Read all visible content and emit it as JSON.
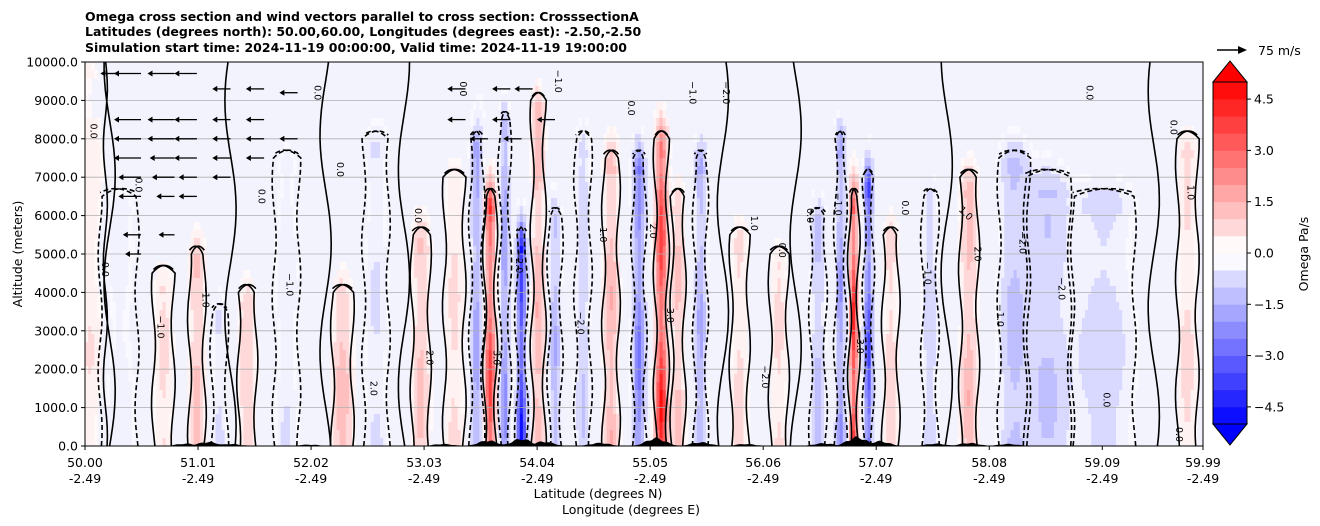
{
  "chart_data": {
    "type": "heatmap",
    "title_lines": [
      "Omega cross section and wind vectors parallel to cross section: CrosssectionA",
      "Latitudes (degrees north): 50.00,60.00, Longitudes (degrees east): -2.50,-2.50",
      "Simulation start time: 2024-11-19 00:00:00, Valid time: 2024-11-19 19:00:00"
    ],
    "ylabel": "Altitude (meters)",
    "xlabel_lines": [
      "Latitude (degrees N)",
      "Longitude (degrees E)"
    ],
    "ylim": [
      0,
      10000
    ],
    "xlim": [
      50.0,
      59.99
    ],
    "y_ticks": [
      {
        "value": 0,
        "label": "0.0"
      },
      {
        "value": 1000,
        "label": "1000.0"
      },
      {
        "value": 2000,
        "label": "2000.0"
      },
      {
        "value": 3000,
        "label": "3000.0"
      },
      {
        "value": 4000,
        "label": "4000.0"
      },
      {
        "value": 5000,
        "label": "5000.0"
      },
      {
        "value": 6000,
        "label": "6000.0"
      },
      {
        "value": 7000,
        "label": "7000.0"
      },
      {
        "value": 8000,
        "label": "8000.0"
      },
      {
        "value": 9000,
        "label": "9000.0"
      },
      {
        "value": 10000,
        "label": "10000.0"
      }
    ],
    "x_ticks": [
      {
        "lat": 50.0,
        "lat_label": "50.00",
        "lon_label": "-2.49"
      },
      {
        "lat": 51.01,
        "lat_label": "51.01",
        "lon_label": "-2.49"
      },
      {
        "lat": 52.02,
        "lat_label": "52.02",
        "lon_label": "-2.49"
      },
      {
        "lat": 53.03,
        "lat_label": "53.03",
        "lon_label": "-2.49"
      },
      {
        "lat": 54.04,
        "lat_label": "54.04",
        "lon_label": "-2.49"
      },
      {
        "lat": 55.05,
        "lat_label": "55.05",
        "lon_label": "-2.49"
      },
      {
        "lat": 56.06,
        "lat_label": "56.06",
        "lon_label": "-2.49"
      },
      {
        "lat": 57.07,
        "lat_label": "57.07",
        "lon_label": "-2.49"
      },
      {
        "lat": 58.08,
        "lat_label": "58.08",
        "lon_label": "-2.49"
      },
      {
        "lat": 59.09,
        "lat_label": "59.09",
        "lon_label": "-2.49"
      },
      {
        "lat": 59.99,
        "lat_label": "59.99",
        "lon_label": "-2.49"
      }
    ],
    "colorbar": {
      "label": "Omega Pa/s",
      "min": -5.0,
      "max": 5.0,
      "ticks": [
        {
          "value": 4.5,
          "label": "4.5"
        },
        {
          "value": 3.0,
          "label": "3.0"
        },
        {
          "value": 1.5,
          "label": "1.5"
        },
        {
          "value": 0.0,
          "label": "0.0"
        },
        {
          "value": -1.5,
          "label": "−1.5"
        },
        {
          "value": -3.0,
          "label": "−3.0"
        },
        {
          "value": -4.5,
          "label": "−4.5"
        }
      ],
      "extend": "both"
    },
    "quiver_key": {
      "label": "75 m/s",
      "speed": 75
    },
    "omega_features": [
      {
        "lat": 50.05,
        "alt_top": 9500,
        "amp": 0.6,
        "width": 0.12
      },
      {
        "lat": 50.3,
        "alt_top": 6000,
        "amp": -0.5,
        "width": 0.15
      },
      {
        "lat": 50.7,
        "alt_top": 4000,
        "amp": 0.8,
        "width": 0.08
      },
      {
        "lat": 51.0,
        "alt_top": 4500,
        "amp": 1.6,
        "width": 0.06
      },
      {
        "lat": 51.2,
        "alt_top": 3000,
        "amp": -0.8,
        "width": 0.06
      },
      {
        "lat": 51.45,
        "alt_top": 3500,
        "amp": 1.2,
        "width": 0.07
      },
      {
        "lat": 51.8,
        "alt_top": 7000,
        "amp": -0.6,
        "width": 0.1
      },
      {
        "lat": 52.3,
        "alt_top": 3500,
        "amp": 1.6,
        "width": 0.08
      },
      {
        "lat": 52.6,
        "alt_top": 7500,
        "amp": -0.7,
        "width": 0.1
      },
      {
        "lat": 53.0,
        "alt_top": 5000,
        "amp": 1.4,
        "width": 0.07
      },
      {
        "lat": 53.3,
        "alt_top": 6500,
        "amp": 0.8,
        "width": 0.08
      },
      {
        "lat": 53.5,
        "alt_top": 7500,
        "amp": -2.2,
        "width": 0.05
      },
      {
        "lat": 53.62,
        "alt_top": 6000,
        "amp": 4.2,
        "width": 0.045
      },
      {
        "lat": 53.75,
        "alt_top": 8000,
        "amp": -2.5,
        "width": 0.04
      },
      {
        "lat": 53.9,
        "alt_top": 5000,
        "amp": -5.0,
        "width": 0.04
      },
      {
        "lat": 54.05,
        "alt_top": 8500,
        "amp": 1.8,
        "width": 0.05
      },
      {
        "lat": 54.2,
        "alt_top": 5500,
        "amp": -1.8,
        "width": 0.05
      },
      {
        "lat": 54.45,
        "alt_top": 7500,
        "amp": -1.2,
        "width": 0.06
      },
      {
        "lat": 54.7,
        "alt_top": 7000,
        "amp": 1.8,
        "width": 0.06
      },
      {
        "lat": 54.95,
        "alt_top": 7000,
        "amp": -3.2,
        "width": 0.05
      },
      {
        "lat": 55.15,
        "alt_top": 7500,
        "amp": 4.8,
        "width": 0.05
      },
      {
        "lat": 55.3,
        "alt_top": 6000,
        "amp": 1.5,
        "width": 0.05
      },
      {
        "lat": 55.5,
        "alt_top": 7000,
        "amp": -2.0,
        "width": 0.05
      },
      {
        "lat": 55.85,
        "alt_top": 5000,
        "amp": 0.8,
        "width": 0.07
      },
      {
        "lat": 56.2,
        "alt_top": 4500,
        "amp": 0.8,
        "width": 0.07
      },
      {
        "lat": 56.55,
        "alt_top": 5500,
        "amp": -1.5,
        "width": 0.06
      },
      {
        "lat": 56.75,
        "alt_top": 7500,
        "amp": -2.5,
        "width": 0.04
      },
      {
        "lat": 56.87,
        "alt_top": 6000,
        "amp": 4.8,
        "width": 0.035
      },
      {
        "lat": 57.0,
        "alt_top": 6500,
        "amp": -4.2,
        "width": 0.035
      },
      {
        "lat": 57.2,
        "alt_top": 5000,
        "amp": 1.0,
        "width": 0.06
      },
      {
        "lat": 57.55,
        "alt_top": 6000,
        "amp": -1.2,
        "width": 0.06
      },
      {
        "lat": 57.9,
        "alt_top": 6500,
        "amp": 1.6,
        "width": 0.07
      },
      {
        "lat": 58.3,
        "alt_top": 7000,
        "amp": -1.5,
        "width": 0.12
      },
      {
        "lat": 58.6,
        "alt_top": 6500,
        "amp": -1.3,
        "width": 0.18
      },
      {
        "lat": 59.1,
        "alt_top": 6000,
        "amp": -1.0,
        "width": 0.25
      },
      {
        "lat": 59.85,
        "alt_top": 7500,
        "amp": 0.8,
        "width": 0.08
      }
    ],
    "wind_vectors": [
      {
        "lat": 50.3,
        "alt": 9700,
        "u": -6
      },
      {
        "lat": 50.5,
        "alt": 9700,
        "u": -10
      },
      {
        "lat": 50.8,
        "alt": 9700,
        "u": -10
      },
      {
        "lat": 51.0,
        "alt": 9700,
        "u": -8
      },
      {
        "lat": 51.3,
        "alt": 9300,
        "u": -6
      },
      {
        "lat": 51.6,
        "alt": 9300,
        "u": -6
      },
      {
        "lat": 51.9,
        "alt": 9200,
        "u": -6
      },
      {
        "lat": 53.4,
        "alt": 9300,
        "u": -6
      },
      {
        "lat": 53.8,
        "alt": 9300,
        "u": -6
      },
      {
        "lat": 54.0,
        "alt": 9300,
        "u": -6
      },
      {
        "lat": 50.5,
        "alt": 8500,
        "u": -10
      },
      {
        "lat": 50.8,
        "alt": 8500,
        "u": -10
      },
      {
        "lat": 51.0,
        "alt": 8500,
        "u": -8
      },
      {
        "lat": 51.3,
        "alt": 8500,
        "u": -6
      },
      {
        "lat": 51.6,
        "alt": 8500,
        "u": -6
      },
      {
        "lat": 53.4,
        "alt": 8500,
        "u": -6
      },
      {
        "lat": 53.8,
        "alt": 8500,
        "u": -6
      },
      {
        "lat": 54.2,
        "alt": 8500,
        "u": -6
      },
      {
        "lat": 50.5,
        "alt": 8000,
        "u": -10
      },
      {
        "lat": 50.8,
        "alt": 8000,
        "u": -10
      },
      {
        "lat": 51.0,
        "alt": 8000,
        "u": -8
      },
      {
        "lat": 51.3,
        "alt": 8000,
        "u": -6
      },
      {
        "lat": 51.6,
        "alt": 8000,
        "u": -6
      },
      {
        "lat": 51.9,
        "alt": 8000,
        "u": -6
      },
      {
        "lat": 53.6,
        "alt": 8000,
        "u": -6
      },
      {
        "lat": 53.9,
        "alt": 8000,
        "u": -6
      },
      {
        "lat": 50.5,
        "alt": 7500,
        "u": -10
      },
      {
        "lat": 50.8,
        "alt": 7500,
        "u": -9
      },
      {
        "lat": 51.0,
        "alt": 7500,
        "u": -8
      },
      {
        "lat": 51.3,
        "alt": 7500,
        "u": -6
      },
      {
        "lat": 51.6,
        "alt": 7500,
        "u": -6
      },
      {
        "lat": 50.5,
        "alt": 7000,
        "u": -8
      },
      {
        "lat": 50.8,
        "alt": 7000,
        "u": -8
      },
      {
        "lat": 51.0,
        "alt": 7000,
        "u": -6
      },
      {
        "lat": 51.3,
        "alt": 7000,
        "u": -6
      },
      {
        "lat": 50.5,
        "alt": 6500,
        "u": -8
      },
      {
        "lat": 50.8,
        "alt": 6500,
        "u": -6
      },
      {
        "lat": 51.0,
        "alt": 6500,
        "u": -6
      },
      {
        "lat": 50.0,
        "alt": 5500,
        "u": -6
      },
      {
        "lat": 50.5,
        "alt": 5500,
        "u": -6
      },
      {
        "lat": 50.8,
        "alt": 5500,
        "u": -5
      },
      {
        "lat": 50.0,
        "alt": 5000,
        "u": -5
      },
      {
        "lat": 50.5,
        "alt": 5000,
        "u": -5
      }
    ],
    "contour_labels": [
      {
        "lat": 50.05,
        "alt": 8200,
        "text": "0.0",
        "angle": 90
      },
      {
        "lat": 50.15,
        "alt": 4600,
        "text": "0.0",
        "angle": 90
      },
      {
        "lat": 50.45,
        "alt": 6800,
        "text": "0.0",
        "angle": 90
      },
      {
        "lat": 50.65,
        "alt": 3100,
        "text": "−1.0",
        "angle": 90
      },
      {
        "lat": 51.05,
        "alt": 3900,
        "text": "−1.0",
        "angle": 90
      },
      {
        "lat": 51.55,
        "alt": 6500,
        "text": "0.0",
        "angle": 90
      },
      {
        "lat": 51.8,
        "alt": 4200,
        "text": "−1.0",
        "angle": 90
      },
      {
        "lat": 52.05,
        "alt": 9200,
        "text": "0.0",
        "angle": 90
      },
      {
        "lat": 52.25,
        "alt": 7200,
        "text": "0.0",
        "angle": 90
      },
      {
        "lat": 52.55,
        "alt": 1500,
        "text": "2.0",
        "angle": 90
      },
      {
        "lat": 52.95,
        "alt": 6000,
        "text": "0.0",
        "angle": 90
      },
      {
        "lat": 53.05,
        "alt": 2300,
        "text": "2.0",
        "angle": 90
      },
      {
        "lat": 53.35,
        "alt": 9300,
        "text": "0.0",
        "angle": 90
      },
      {
        "lat": 53.65,
        "alt": 2300,
        "text": "3.0",
        "angle": 90
      },
      {
        "lat": 53.85,
        "alt": 4800,
        "text": "−2.0",
        "angle": 90
      },
      {
        "lat": 54.2,
        "alt": 9500,
        "text": "−1.0",
        "angle": 90
      },
      {
        "lat": 54.4,
        "alt": 3200,
        "text": "−2.0",
        "angle": 90
      },
      {
        "lat": 54.6,
        "alt": 5500,
        "text": "1.0",
        "angle": 90
      },
      {
        "lat": 54.85,
        "alt": 8800,
        "text": "0.0",
        "angle": 90
      },
      {
        "lat": 55.05,
        "alt": 5600,
        "text": "2.0",
        "angle": 90
      },
      {
        "lat": 55.2,
        "alt": 3400,
        "text": "3.0",
        "angle": 90
      },
      {
        "lat": 55.4,
        "alt": 9200,
        "text": "−1.0",
        "angle": 90
      },
      {
        "lat": 55.7,
        "alt": 9200,
        "text": "−2.0",
        "angle": 90
      },
      {
        "lat": 55.95,
        "alt": 5800,
        "text": "1.0",
        "angle": 90
      },
      {
        "lat": 56.05,
        "alt": 1800,
        "text": "−2.0",
        "angle": 90
      },
      {
        "lat": 56.2,
        "alt": 5100,
        "text": "0.0",
        "angle": 90
      },
      {
        "lat": 56.45,
        "alt": 6000,
        "text": "0.0",
        "angle": 90
      },
      {
        "lat": 56.7,
        "alt": 6300,
        "text": "−1.0",
        "angle": 90
      },
      {
        "lat": 56.9,
        "alt": 2700,
        "text": "−3.0",
        "angle": 90
      },
      {
        "lat": 57.3,
        "alt": 6200,
        "text": "0.0",
        "angle": 90
      },
      {
        "lat": 57.5,
        "alt": 4500,
        "text": "−1.0",
        "angle": 90
      },
      {
        "lat": 57.85,
        "alt": 6000,
        "text": "1.0",
        "angle": 45
      },
      {
        "lat": 57.95,
        "alt": 5000,
        "text": "2.0",
        "angle": 90
      },
      {
        "lat": 58.15,
        "alt": 3400,
        "text": "−1.0",
        "angle": 90
      },
      {
        "lat": 58.35,
        "alt": 5300,
        "text": "−2.0",
        "angle": 90
      },
      {
        "lat": 58.7,
        "alt": 4100,
        "text": "−2.0",
        "angle": 90
      },
      {
        "lat": 58.95,
        "alt": 9200,
        "text": "0.0",
        "angle": 90
      },
      {
        "lat": 59.1,
        "alt": 1200,
        "text": "0.0",
        "angle": 90
      },
      {
        "lat": 59.7,
        "alt": 8300,
        "text": "0.0",
        "angle": 90
      },
      {
        "lat": 59.85,
        "alt": 6600,
        "text": "1.0",
        "angle": 90
      },
      {
        "lat": 59.75,
        "alt": 300,
        "text": "0.0",
        "angle": 90
      }
    ]
  }
}
